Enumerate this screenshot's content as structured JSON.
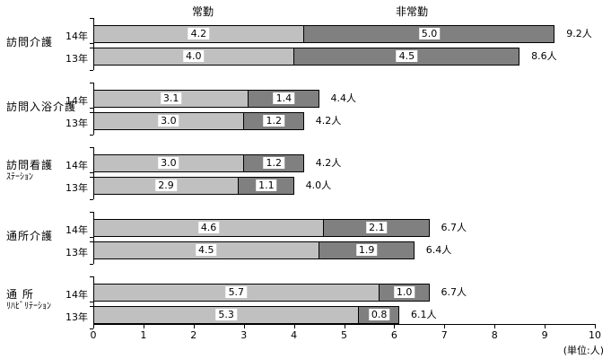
{
  "chart_data": {
    "type": "bar",
    "orientation": "horizontal",
    "stacked": true,
    "title": "",
    "unit_label": "(単位:人)",
    "legend_position": "top-inline",
    "grid": false,
    "series": [
      {
        "name": "常勤",
        "color": "#c0c0c0"
      },
      {
        "name": "非常勤",
        "color": "#808080"
      }
    ],
    "x_axis": {
      "min": 0,
      "max": 10,
      "tick_interval": 1,
      "tick_labels": [
        "0",
        "1",
        "2",
        "3",
        "4",
        "5",
        "6",
        "7",
        "8",
        "9",
        "10"
      ]
    },
    "groups": [
      {
        "label_lines": [
          "訪問介護"
        ],
        "rows": [
          {
            "year": "14年",
            "values": [
              4.2,
              5.0
            ],
            "total": "9.2人"
          },
          {
            "year": "13年",
            "values": [
              4.0,
              4.5
            ],
            "total": "8.6人"
          }
        ]
      },
      {
        "label_lines": [
          "訪問入浴介護"
        ],
        "rows": [
          {
            "year": "14年",
            "values": [
              3.1,
              1.4
            ],
            "total": "4.4人"
          },
          {
            "year": "13年",
            "values": [
              3.0,
              1.2
            ],
            "total": "4.2人"
          }
        ]
      },
      {
        "label_lines": [
          "訪問看護",
          "ｽﾃｰｼｮﾝ"
        ],
        "rows": [
          {
            "year": "14年",
            "values": [
              3.0,
              1.2
            ],
            "total": "4.2人"
          },
          {
            "year": "13年",
            "values": [
              2.9,
              1.1
            ],
            "total": "4.0人"
          }
        ]
      },
      {
        "label_lines": [
          "通所介護"
        ],
        "rows": [
          {
            "year": "14年",
            "values": [
              4.6,
              2.1
            ],
            "total": "6.7人"
          },
          {
            "year": "13年",
            "values": [
              4.5,
              1.9
            ],
            "total": "6.4人"
          }
        ]
      },
      {
        "label_lines": [
          "通 所",
          "ﾘﾊﾋﾞﾘﾃｰｼｮﾝ"
        ],
        "rows": [
          {
            "year": "14年",
            "values": [
              5.7,
              1.0
            ],
            "total": "6.7人"
          },
          {
            "year": "13年",
            "values": [
              5.3,
              0.8
            ],
            "total": "6.1人"
          }
        ]
      }
    ]
  }
}
